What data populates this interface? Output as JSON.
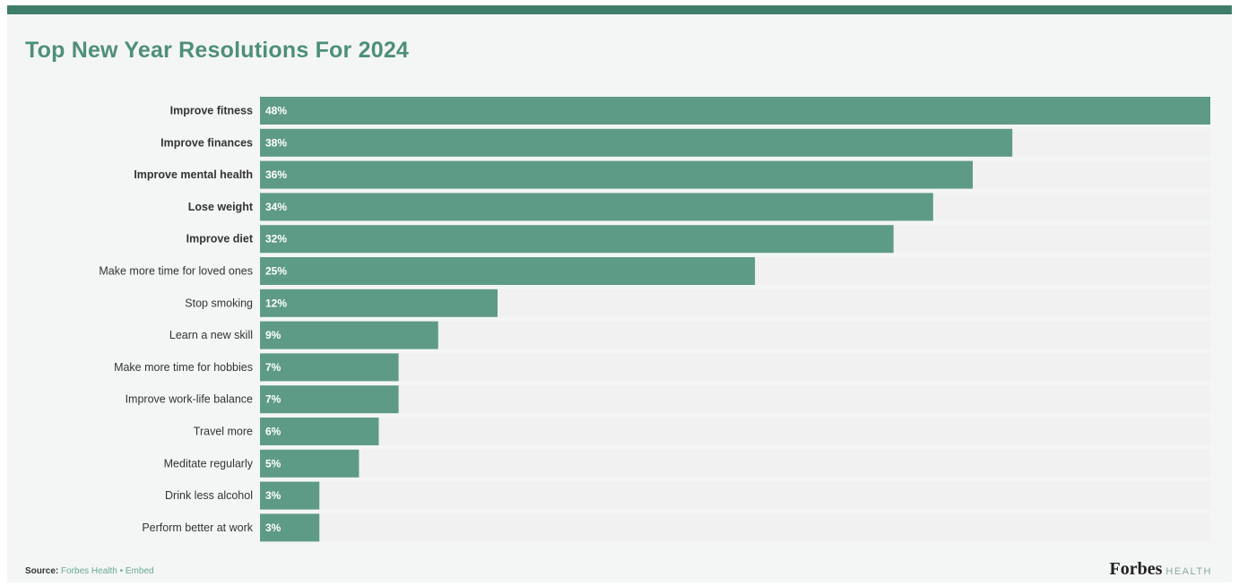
{
  "chart_data": {
    "type": "bar",
    "orientation": "horizontal",
    "title": "Top New Year Resolutions For 2024",
    "categories": [
      "Improve fitness",
      "Improve finances",
      "Improve mental health",
      "Lose weight",
      "Improve diet",
      "Make more time for loved ones",
      "Stop smoking",
      "Learn a new skill",
      "Make more time for hobbies",
      "Improve work-life balance",
      "Travel more",
      "Meditate regularly",
      "Drink less alcohol",
      "Perform better at work"
    ],
    "bold_categories": 5,
    "values": [
      48,
      38,
      36,
      34,
      32,
      25,
      12,
      9,
      7,
      7,
      6,
      5,
      3,
      3
    ],
    "value_labels": [
      "48%",
      "38%",
      "36%",
      "34%",
      "32%",
      "25%",
      "12%",
      "9%",
      "7%",
      "7%",
      "6%",
      "5%",
      "3%",
      "3%"
    ],
    "xlim": [
      0,
      48
    ],
    "grid": false,
    "legend": "none",
    "colors": {
      "bar": "#5e9b87",
      "track": "#f1f1f1",
      "title": "#4e8f78",
      "header": "#3d7d69"
    }
  },
  "footer": {
    "source_label": "Source:",
    "source_text": "Forbes Health • Embed",
    "brand": "Forbes",
    "brand_sub": "HEALTH"
  }
}
